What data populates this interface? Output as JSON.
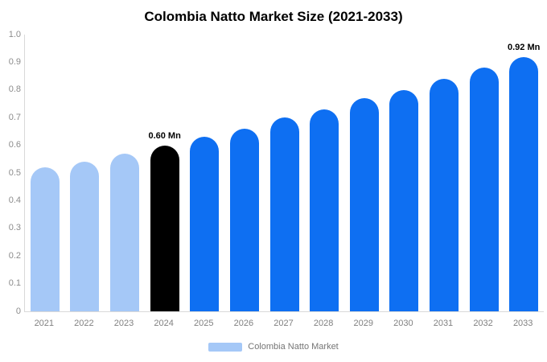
{
  "title": "Colombia Natto Market Size (2021-2033)",
  "colors": {
    "historical": "#A5C8F7",
    "highlight": "#000000",
    "forecast": "#0E6FF2",
    "axis_line": "#D9D9D9",
    "tick_text": "#8C8C8C",
    "value_label_text": "#000000"
  },
  "legend": {
    "label": "Colombia Natto Market",
    "swatch_color": "#A5C8F7"
  },
  "chart_data": {
    "type": "bar",
    "title": "Colombia Natto Market Size (2021-2033)",
    "categories": [
      "2021",
      "2022",
      "2023",
      "2024",
      "2025",
      "2026",
      "2027",
      "2028",
      "2029",
      "2030",
      "2031",
      "2032",
      "2033"
    ],
    "values": [
      0.52,
      0.54,
      0.57,
      0.6,
      0.63,
      0.66,
      0.7,
      0.73,
      0.77,
      0.8,
      0.84,
      0.88,
      0.92
    ],
    "series_styles": [
      "historical",
      "historical",
      "historical",
      "highlight",
      "forecast",
      "forecast",
      "forecast",
      "forecast",
      "forecast",
      "forecast",
      "forecast",
      "forecast",
      "forecast"
    ],
    "annotations": [
      {
        "category": "2024",
        "text": "0.60 Mn"
      },
      {
        "category": "2033",
        "text": "0.92 Mn"
      }
    ],
    "unit": "Mn",
    "xlabel": "",
    "ylabel": "",
    "ylim": [
      0,
      1.0
    ],
    "yticks": [
      "0",
      "0.1",
      "0.2",
      "0.3",
      "0.4",
      "0.5",
      "0.6",
      "0.7",
      "0.8",
      "0.9",
      "1.0"
    ],
    "grid": false,
    "legend_position": "bottom"
  }
}
